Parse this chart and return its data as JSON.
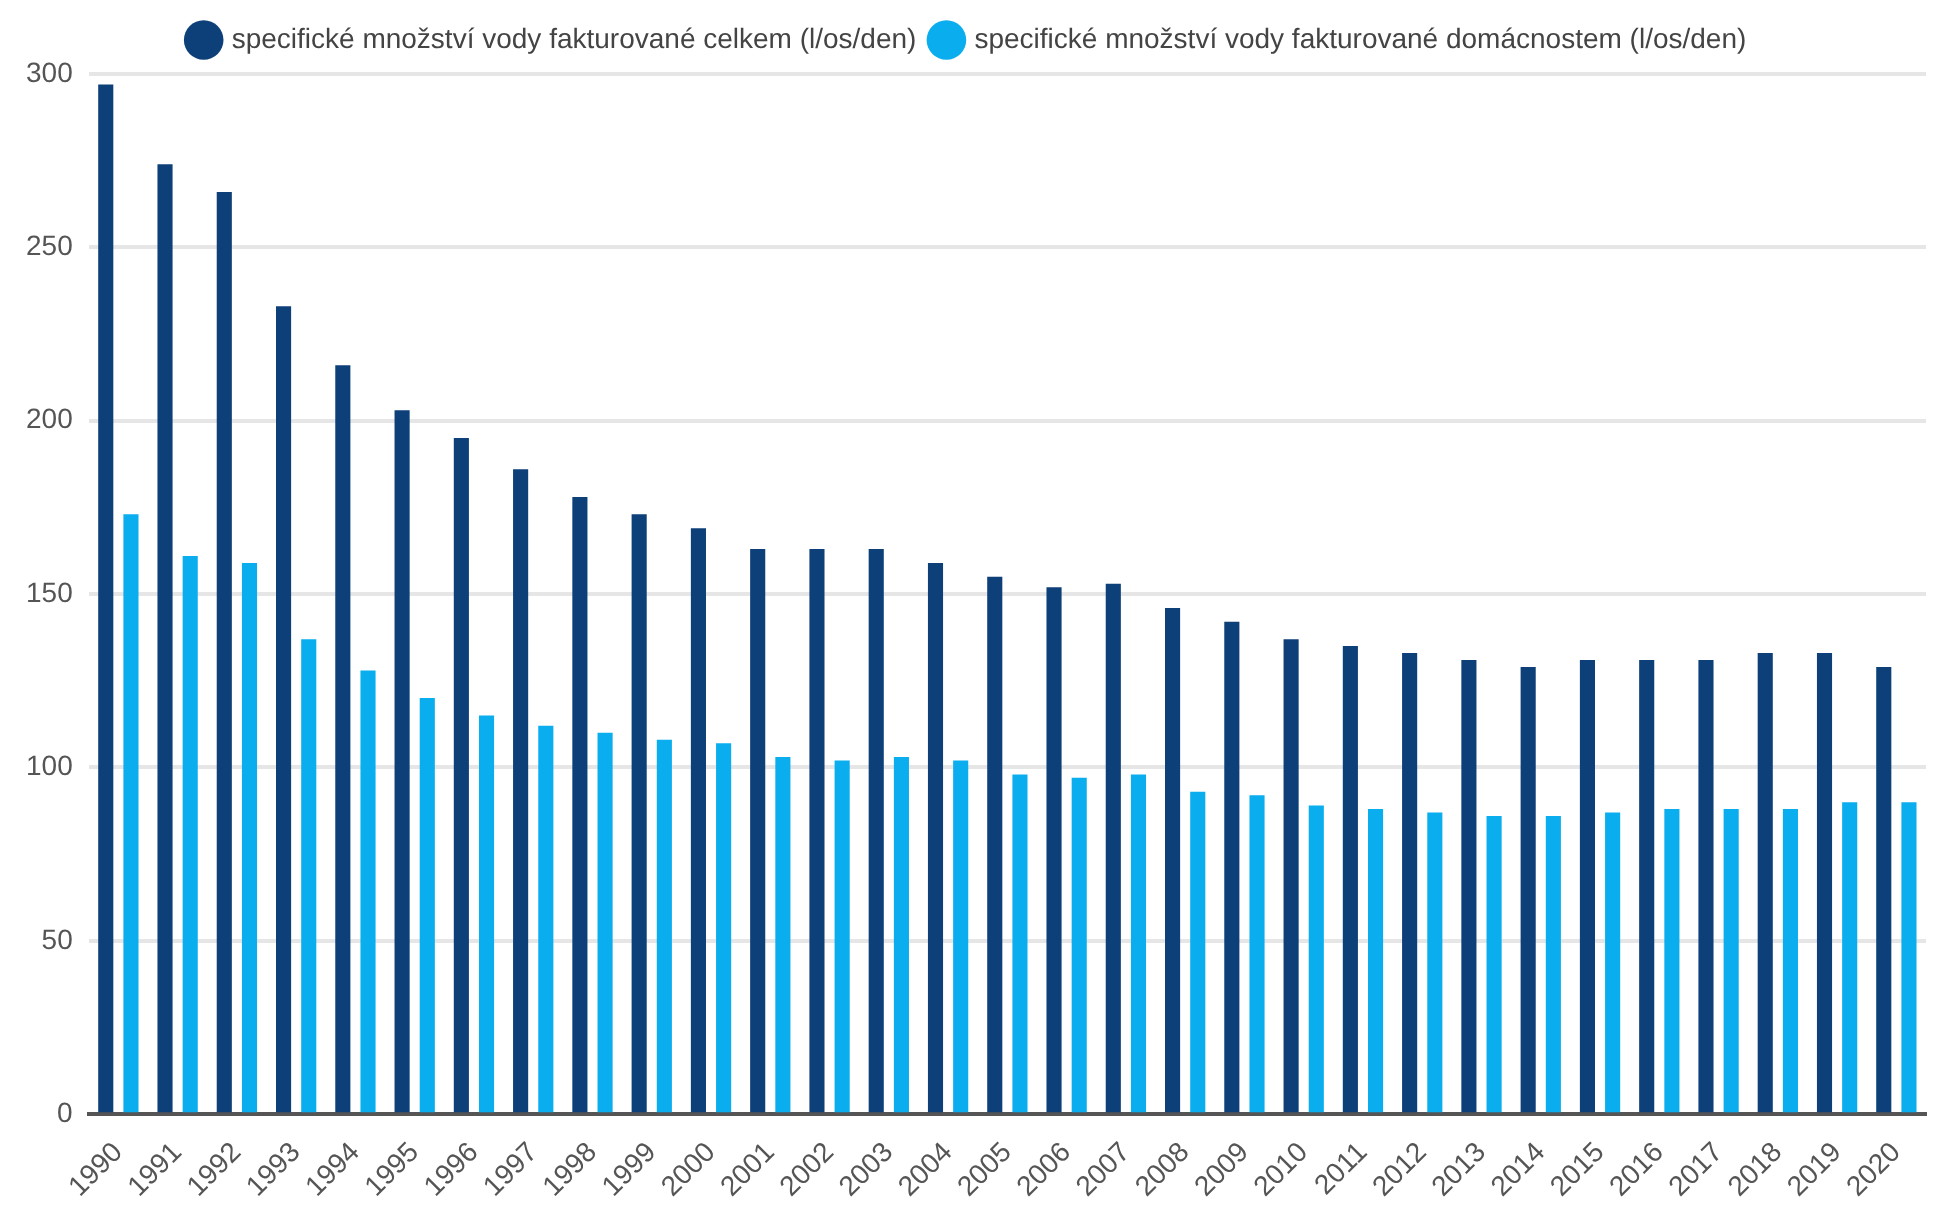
{
  "chart_data": {
    "type": "bar",
    "categories": [
      "1990",
      "1991",
      "1992",
      "1993",
      "1994",
      "1995",
      "1996",
      "1997",
      "1998",
      "1999",
      "2000",
      "2001",
      "2002",
      "2003",
      "2004",
      "2005",
      "2006",
      "2007",
      "2008",
      "2009",
      "2010",
      "2011",
      "2012",
      "2013",
      "2014",
      "2015",
      "2016",
      "2017",
      "2018",
      "2019",
      "2020"
    ],
    "series": [
      {
        "name": "specifické množství vody fakturované celkem (l/os/den)",
        "color": "#0d3f78",
        "values": [
          297,
          274,
          266,
          233,
          216,
          203,
          195,
          186,
          178,
          173,
          169,
          163,
          163,
          163,
          159,
          155,
          152,
          153,
          146,
          142,
          137,
          135,
          133,
          131,
          129,
          131,
          131,
          131,
          133,
          133,
          129
        ]
      },
      {
        "name": "specifické množství vody fakturované domácnostem (l/os/den)",
        "color": "#0aaeef",
        "values": [
          173,
          161,
          159,
          137,
          128,
          120,
          115,
          112,
          110,
          108,
          107,
          103,
          102,
          103,
          102,
          98,
          97,
          98,
          93,
          92,
          89,
          88,
          87,
          86,
          86,
          87,
          88,
          88,
          88,
          90,
          90
        ]
      }
    ],
    "ylim": [
      0,
      300
    ],
    "yticks": [
      0,
      50,
      100,
      150,
      200,
      250,
      300
    ],
    "grid": "y",
    "legend": "top"
  }
}
